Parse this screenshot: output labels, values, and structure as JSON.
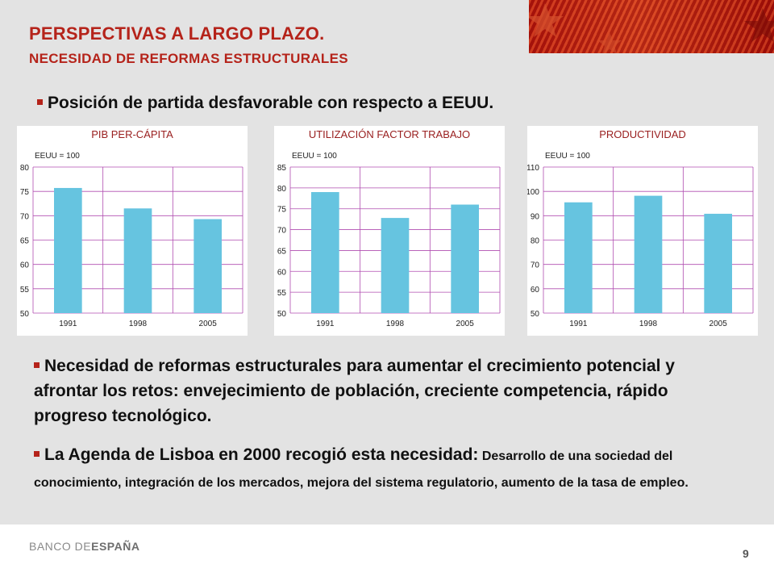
{
  "header": {
    "title": "PERSPECTIVAS A LARGO PLAZO.",
    "subtitle": "NECESIDAD DE REFORMAS ESTRUCTURALES"
  },
  "bullets": {
    "b1": "Posición de partida desfavorable con respecto a EEUU.",
    "b2": "Necesidad de reformas estructurales para aumentar el crecimiento potencial y afrontar los retos: envejecimiento de población, creciente competencia, rápido progreso tecnológico.",
    "b3_main": "La Agenda de Lisboa en 2000 recogió esta necesidad:",
    "b3_detail": " Desarrollo de una sociedad del conocimiento, integración de los mercados, mejora del sistema regulatorio, aumento de la tasa de empleo."
  },
  "footer": {
    "logo_part1": "BANCO DE",
    "logo_part2": "ESPAÑA",
    "page_number": "9"
  },
  "colors": {
    "accent": "#b5231a",
    "bar": "#66c4e0",
    "grid": "#b04db0",
    "chart_title": "#9a2020"
  },
  "chart_data": [
    {
      "type": "bar",
      "title": "PIB PER-CÁPITA",
      "note": "EEUU = 100",
      "categories": [
        "1991",
        "1998",
        "2005"
      ],
      "values": [
        75.7,
        71.5,
        69.3
      ],
      "ylim": [
        50,
        80
      ],
      "yticks": [
        "50",
        "55",
        "60",
        "65",
        "70",
        "75",
        "80"
      ],
      "grid": true
    },
    {
      "type": "bar",
      "title": "UTILIZACIÓN FACTOR TRABAJO",
      "note": "EEUU = 100",
      "categories": [
        "1991",
        "1998",
        "2005"
      ],
      "values": [
        79.0,
        72.8,
        76.0
      ],
      "ylim": [
        50,
        85
      ],
      "yticks": [
        "50",
        "55",
        "60",
        "65",
        "70",
        "75",
        "80",
        "85"
      ],
      "grid": true
    },
    {
      "type": "bar",
      "title": "PRODUCTIVIDAD",
      "note": "EEUU = 100",
      "categories": [
        "1991",
        "1998",
        "2005"
      ],
      "values": [
        95.5,
        98.2,
        90.8
      ],
      "ylim": [
        50,
        110
      ],
      "yticks": [
        "50",
        "60",
        "70",
        "80",
        "90",
        "100",
        "110"
      ],
      "grid": true
    }
  ]
}
